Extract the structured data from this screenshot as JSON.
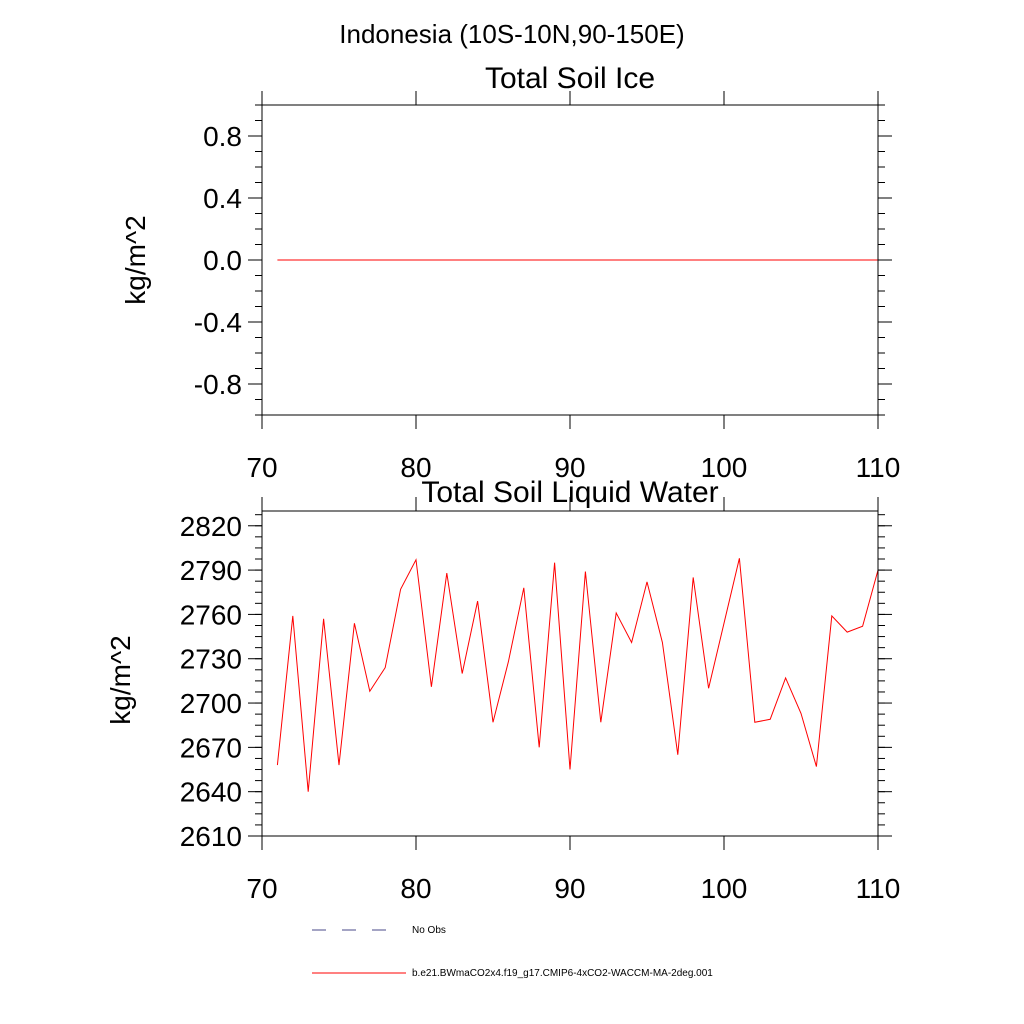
{
  "suptitle": "Indonesia (10S-10N,90-150E)",
  "colors": {
    "model": "#ff0000",
    "obs": "#4a4a8a"
  },
  "legend": {
    "obs_label": "No Obs",
    "model_label": "b.e21.BWmaCO2x4.f19_g17.CMIP6-4xCO2-WACCM-MA-2deg.001"
  },
  "chart_data": [
    {
      "type": "line",
      "title": "Total Soil Ice",
      "xlabel": "",
      "ylabel": "kg/m^2",
      "xlim": [
        70,
        110
      ],
      "ylim": [
        -1.0,
        1.0
      ],
      "xticks": [
        70,
        80,
        90,
        100,
        110
      ],
      "xtick_labels": [
        "70",
        "80",
        "90",
        "100",
        "110"
      ],
      "yticks": [
        0.8,
        0.4,
        0.0,
        -0.4,
        -0.8
      ],
      "ytick_labels": [
        "0.8",
        "0.4",
        "0.0",
        "-0.4",
        "-0.8"
      ],
      "x": [
        71,
        72,
        73,
        74,
        75,
        76,
        77,
        78,
        79,
        80,
        81,
        82,
        83,
        84,
        85,
        86,
        87,
        88,
        89,
        90,
        91,
        92,
        93,
        94,
        95,
        96,
        97,
        98,
        99,
        100,
        101,
        102,
        103,
        104,
        105,
        106,
        107,
        108,
        109,
        110
      ],
      "series": [
        {
          "values": [
            0,
            0,
            0,
            0,
            0,
            0,
            0,
            0,
            0,
            0,
            0,
            0,
            0,
            0,
            0,
            0,
            0,
            0,
            0,
            0,
            0,
            0,
            0,
            0,
            0,
            0,
            0,
            0,
            0,
            0,
            0,
            0,
            0,
            0,
            0,
            0,
            0,
            0,
            0,
            0
          ]
        }
      ]
    },
    {
      "type": "line",
      "title": "Total Soil Liquid Water",
      "xlabel": "",
      "ylabel": "kg/m^2",
      "xlim": [
        70,
        110
      ],
      "ylim": [
        2610,
        2830
      ],
      "xticks": [
        70,
        80,
        90,
        100,
        110
      ],
      "xtick_labels": [
        "70",
        "80",
        "90",
        "100",
        "110"
      ],
      "yticks": [
        2820,
        2790,
        2760,
        2730,
        2700,
        2670,
        2640,
        2610
      ],
      "ytick_labels": [
        "2820",
        "2790",
        "2760",
        "2730",
        "2700",
        "2670",
        "2640",
        "2610"
      ],
      "x": [
        71,
        72,
        73,
        74,
        75,
        76,
        77,
        78,
        79,
        80,
        81,
        82,
        83,
        84,
        85,
        86,
        87,
        88,
        89,
        90,
        91,
        92,
        93,
        94,
        95,
        96,
        97,
        98,
        99,
        100,
        101,
        102,
        103,
        104,
        105,
        106,
        107,
        108,
        109,
        110
      ],
      "series": [
        {
          "values": [
            2658,
            2759,
            2640,
            2757,
            2658,
            2754,
            2708,
            2724,
            2777,
            2797,
            2711,
            2788,
            2720,
            2769,
            2687,
            2728,
            2778,
            2670,
            2795,
            2655,
            2789,
            2687,
            2761,
            2741,
            2782,
            2741,
            2665,
            2785,
            2710,
            2754,
            2798,
            2687,
            2689,
            2717,
            2693,
            2657,
            2759,
            2748,
            2752,
            2790
          ]
        }
      ]
    }
  ]
}
